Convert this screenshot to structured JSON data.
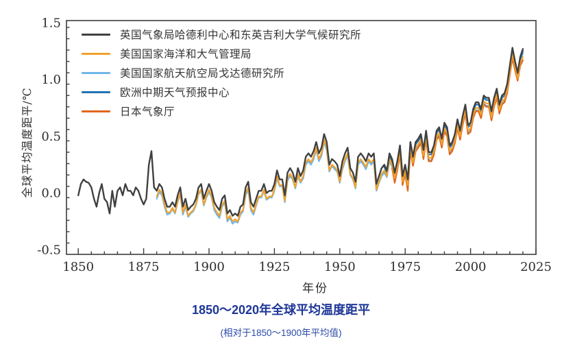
{
  "page": {
    "background": "#ffffff"
  },
  "chart_data": {
    "type": "line",
    "title": "1850～2020年全球平均温度距平",
    "subtitle": "(相对于1850～1900年平均值)",
    "xlabel": "年份",
    "ylabel": "全球平均温度距平/℃",
    "title_color": "#1e3697",
    "subtitle_color": "#2c4ba8",
    "axis_color": "#3c3c3c",
    "xlim": [
      1845.5,
      2025
    ],
    "ylim": [
      -0.54,
      1.52
    ],
    "x_major_ticks": [
      1850,
      1875,
      1900,
      1925,
      1950,
      1975,
      2000,
      2025
    ],
    "x_minor_step": 5,
    "y_major_ticks": [
      -0.5,
      0.0,
      0.5,
      1.0,
      1.5
    ],
    "y_major_tick_labels": [
      "-0.5",
      "0.0",
      "0.5",
      "1.0",
      "1.5"
    ],
    "y_minor_step": 0.1,
    "grid": false,
    "legend_position": "top-left-inside",
    "series": [
      {
        "name": "英国气象局哈德利中心和东英吉利大学气候研究所",
        "color": "#404040",
        "width": 2.4,
        "start_year": 1850,
        "values": [
          -0.02,
          0.08,
          0.12,
          0.1,
          0.09,
          0.05,
          -0.05,
          -0.12,
          0.0,
          0.08,
          -0.05,
          -0.08,
          -0.18,
          0.02,
          -0.12,
          0.02,
          0.05,
          -0.02,
          0.08,
          0.02,
          0.02,
          -0.02,
          0.05,
          0.02,
          -0.05,
          -0.1,
          -0.05,
          0.25,
          0.37,
          0.05,
          0.02,
          0.08,
          0.05,
          -0.05,
          -0.12,
          -0.12,
          -0.08,
          -0.12,
          -0.02,
          0.05,
          -0.12,
          -0.05,
          -0.15,
          -0.12,
          -0.1,
          -0.05,
          0.05,
          0.08,
          -0.05,
          0.02,
          0.08,
          0.02,
          -0.08,
          -0.12,
          -0.15,
          -0.05,
          -0.02,
          -0.18,
          -0.15,
          -0.2,
          -0.18,
          -0.2,
          -0.12,
          -0.1,
          0.05,
          0.1,
          -0.08,
          -0.12,
          -0.05,
          0.02,
          0.02,
          0.08,
          0.0,
          0.02,
          0.02,
          0.08,
          0.2,
          0.12,
          0.12,
          -0.02,
          0.18,
          0.22,
          0.18,
          0.1,
          0.22,
          0.15,
          0.2,
          0.32,
          0.35,
          0.32,
          0.37,
          0.45,
          0.35,
          0.4,
          0.52,
          0.45,
          0.25,
          0.3,
          0.28,
          0.25,
          0.15,
          0.28,
          0.35,
          0.4,
          0.22,
          0.18,
          0.1,
          0.32,
          0.35,
          0.32,
          0.28,
          0.35,
          0.32,
          0.35,
          0.08,
          0.15,
          0.22,
          0.25,
          0.2,
          0.35,
          0.3,
          0.18,
          0.28,
          0.42,
          0.15,
          0.25,
          0.12,
          0.45,
          0.32,
          0.45,
          0.48,
          0.52,
          0.38,
          0.55,
          0.36,
          0.36,
          0.42,
          0.55,
          0.58,
          0.48,
          0.62,
          0.58,
          0.42,
          0.45,
          0.52,
          0.65,
          0.55,
          0.68,
          0.78,
          0.6,
          0.62,
          0.74,
          0.8,
          0.8,
          0.74,
          0.86,
          0.84,
          0.84,
          0.72,
          0.84,
          0.92,
          0.78,
          0.86,
          0.88,
          0.96,
          1.12,
          1.28,
          1.16,
          1.06,
          1.2,
          1.27
        ]
      },
      {
        "name": "美国国家海洋和大气管理局",
        "color": "#F0A22E",
        "width": 2.2,
        "start_year": 1880,
        "values": [
          -0.03,
          0.03,
          0.0,
          -0.1,
          -0.17,
          -0.17,
          -0.13,
          -0.17,
          -0.07,
          0.0,
          -0.17,
          -0.1,
          -0.2,
          -0.17,
          -0.15,
          -0.1,
          0.0,
          0.03,
          -0.1,
          -0.03,
          0.03,
          -0.03,
          -0.13,
          -0.17,
          -0.2,
          -0.1,
          -0.07,
          -0.23,
          -0.2,
          -0.25,
          -0.23,
          -0.25,
          -0.17,
          -0.15,
          0.0,
          0.05,
          -0.13,
          -0.17,
          -0.1,
          -0.03,
          -0.03,
          0.03,
          -0.05,
          -0.03,
          -0.03,
          0.03,
          0.15,
          0.07,
          0.07,
          -0.07,
          0.13,
          0.17,
          0.13,
          0.05,
          0.17,
          0.1,
          0.15,
          0.27,
          0.3,
          0.27,
          0.32,
          0.4,
          0.3,
          0.35,
          0.47,
          0.4,
          0.2,
          0.25,
          0.23,
          0.2,
          0.1,
          0.23,
          0.3,
          0.35,
          0.17,
          0.13,
          0.05,
          0.27,
          0.3,
          0.27,
          0.23,
          0.3,
          0.27,
          0.3,
          0.03,
          0.1,
          0.17,
          0.2,
          0.15,
          0.3,
          0.25,
          0.13,
          0.23,
          0.37,
          0.1,
          0.2,
          0.07,
          0.4,
          0.27,
          0.4,
          0.43,
          0.47,
          0.33,
          0.5,
          0.31,
          0.31,
          0.37,
          0.5,
          0.53,
          0.43,
          0.57,
          0.53,
          0.37,
          0.4,
          0.47,
          0.6,
          0.5,
          0.63,
          0.73,
          0.55,
          0.57,
          0.69,
          0.75,
          0.75,
          0.69,
          0.81,
          0.79,
          0.79,
          0.67,
          0.79,
          0.87,
          0.73,
          0.81,
          0.83,
          0.91,
          1.07,
          1.23,
          1.11,
          1.01,
          1.15,
          1.2
        ]
      },
      {
        "name": "美国国家航天航空局戈达德研究所",
        "color": "#6FB6E9",
        "width": 2.2,
        "start_year": 1880,
        "values": [
          -0.05,
          0.01,
          -0.02,
          -0.12,
          -0.19,
          -0.18,
          -0.14,
          -0.18,
          -0.08,
          -0.01,
          -0.19,
          -0.12,
          -0.21,
          -0.18,
          -0.16,
          -0.11,
          -0.01,
          0.02,
          -0.11,
          -0.04,
          0.01,
          -0.04,
          -0.15,
          -0.19,
          -0.22,
          -0.12,
          -0.08,
          -0.25,
          -0.22,
          -0.27,
          -0.25,
          -0.26,
          -0.19,
          -0.16,
          -0.02,
          0.03,
          -0.15,
          -0.19,
          -0.11,
          -0.04,
          -0.04,
          0.02,
          -0.06,
          -0.04,
          -0.04,
          0.02,
          0.13,
          0.06,
          0.06,
          -0.08,
          0.11,
          0.15,
          0.12,
          0.04,
          0.15,
          0.09,
          0.13,
          0.25,
          0.28,
          0.25,
          0.3,
          0.38,
          0.28,
          0.33,
          0.45,
          0.38,
          0.19,
          0.24,
          0.21,
          0.19,
          0.09,
          0.21,
          0.28,
          0.33,
          0.16,
          0.12,
          0.04,
          0.25,
          0.28,
          0.25,
          0.21,
          0.28,
          0.25,
          0.28,
          0.02,
          0.09,
          0.15,
          0.18,
          0.14,
          0.28,
          0.23,
          0.12,
          0.21,
          0.35,
          0.09,
          0.18,
          0.05,
          0.38,
          0.25,
          0.38,
          0.41,
          0.45,
          0.31,
          0.48,
          0.29,
          0.29,
          0.35,
          0.48,
          0.51,
          0.41,
          0.55,
          0.51,
          0.35,
          0.38,
          0.45,
          0.58,
          0.48,
          0.61,
          0.71,
          0.53,
          0.55,
          0.67,
          0.73,
          0.73,
          0.67,
          0.79,
          0.77,
          0.77,
          0.65,
          0.77,
          0.85,
          0.71,
          0.79,
          0.81,
          0.89,
          1.05,
          1.22,
          1.12,
          1.03,
          1.17,
          1.23
        ]
      },
      {
        "name": "欧洲中期天气预报中心",
        "color": "#2272B2",
        "width": 2.2,
        "start_year": 1967,
        "values": [
          0.23,
          0.18,
          0.33,
          0.28,
          0.16,
          0.26,
          0.4,
          0.13,
          0.23,
          0.1,
          0.43,
          0.3,
          0.43,
          0.46,
          0.5,
          0.36,
          0.53,
          0.34,
          0.34,
          0.4,
          0.53,
          0.56,
          0.46,
          0.6,
          0.56,
          0.4,
          0.43,
          0.5,
          0.63,
          0.53,
          0.66,
          0.76,
          0.58,
          0.6,
          0.72,
          0.78,
          0.78,
          0.72,
          0.84,
          0.82,
          0.82,
          0.7,
          0.82,
          0.9,
          0.76,
          0.84,
          0.86,
          0.94,
          1.1,
          1.26,
          1.14,
          1.05,
          1.18,
          1.25
        ]
      },
      {
        "name": "日本气象厅",
        "color": "#E0661B",
        "width": 2.2,
        "start_year": 1970,
        "values": [
          0.22,
          0.09,
          0.2,
          0.34,
          0.07,
          0.17,
          0.02,
          0.37,
          0.24,
          0.37,
          0.4,
          0.44,
          0.3,
          0.47,
          0.28,
          0.28,
          0.34,
          0.47,
          0.5,
          0.4,
          0.54,
          0.5,
          0.34,
          0.37,
          0.44,
          0.57,
          0.47,
          0.6,
          0.7,
          0.52,
          0.54,
          0.66,
          0.72,
          0.72,
          0.66,
          0.78,
          0.76,
          0.76,
          0.64,
          0.76,
          0.84,
          0.7,
          0.78,
          0.8,
          0.88,
          1.04,
          1.19,
          1.08,
          0.99,
          1.12,
          1.17
        ]
      }
    ]
  }
}
